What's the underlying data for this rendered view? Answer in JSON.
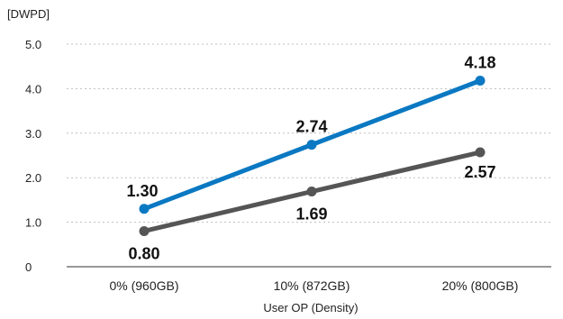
{
  "chart_data": {
    "type": "line",
    "title": "",
    "ylabel": "[DWPD]",
    "xlabel": "User OP (Density)",
    "categories": [
      "0% (960GB)",
      "10% (872GB)",
      "20% (800GB)"
    ],
    "yticks": [
      "0",
      "1.0",
      "2.0",
      "3.0",
      "4.0",
      "5.0"
    ],
    "ylim": [
      0,
      5
    ],
    "grid": true,
    "series": [
      {
        "values": [
          1.3,
          2.74,
          4.18
        ],
        "labels": [
          "1.30",
          "2.74",
          "4.18"
        ],
        "color": "#0a78c2",
        "label_position": "above"
      },
      {
        "values": [
          0.8,
          1.69,
          2.57
        ],
        "labels": [
          "0.80",
          "1.69",
          "2.57"
        ],
        "color": "#555555",
        "label_position": "below"
      }
    ]
  }
}
